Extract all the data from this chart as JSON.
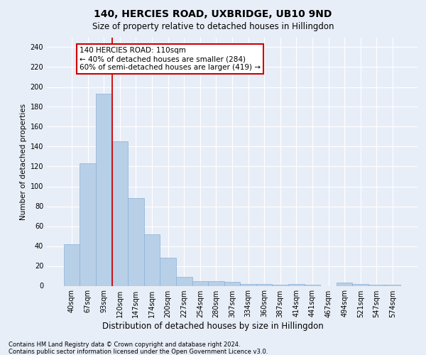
{
  "title": "140, HERCIES ROAD, UXBRIDGE, UB10 9ND",
  "subtitle": "Size of property relative to detached houses in Hillingdon",
  "xlabel": "Distribution of detached houses by size in Hillingdon",
  "ylabel": "Number of detached properties",
  "footer_line1": "Contains HM Land Registry data © Crown copyright and database right 2024.",
  "footer_line2": "Contains public sector information licensed under the Open Government Licence v3.0.",
  "categories": [
    "40sqm",
    "67sqm",
    "93sqm",
    "120sqm",
    "147sqm",
    "174sqm",
    "200sqm",
    "227sqm",
    "254sqm",
    "280sqm",
    "307sqm",
    "334sqm",
    "360sqm",
    "387sqm",
    "414sqm",
    "441sqm",
    "467sqm",
    "494sqm",
    "521sqm",
    "547sqm",
    "574sqm"
  ],
  "values": [
    42,
    123,
    193,
    145,
    88,
    52,
    28,
    9,
    5,
    5,
    4,
    2,
    2,
    1,
    2,
    1,
    0,
    3,
    2,
    1,
    1
  ],
  "bar_color": "#b8cfe8",
  "bar_edge_color": "#8ab0d4",
  "background_color": "#e8eef8",
  "grid_color": "#ffffff",
  "vline_color": "#cc0000",
  "vline_x_index": 2.5,
  "annotation_text": "140 HERCIES ROAD: 110sqm\n← 40% of detached houses are smaller (284)\n60% of semi-detached houses are larger (419) →",
  "annotation_box_color": "#ffffff",
  "annotation_box_edge": "#cc0000",
  "ylim": [
    0,
    250
  ],
  "yticks": [
    0,
    20,
    40,
    60,
    80,
    100,
    120,
    140,
    160,
    180,
    200,
    220,
    240
  ],
  "title_fontsize": 10,
  "subtitle_fontsize": 8.5,
  "ylabel_fontsize": 7.5,
  "xlabel_fontsize": 8.5,
  "tick_fontsize": 7,
  "annotation_fontsize": 7.5,
  "footer_fontsize": 6
}
